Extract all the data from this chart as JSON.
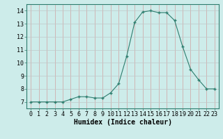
{
  "x": [
    0,
    1,
    2,
    3,
    4,
    5,
    6,
    7,
    8,
    9,
    10,
    11,
    12,
    13,
    14,
    15,
    16,
    17,
    18,
    19,
    20,
    21,
    22,
    23
  ],
  "y": [
    7,
    7,
    7,
    7,
    7,
    7.2,
    7.4,
    7.4,
    7.3,
    7.3,
    7.7,
    8.4,
    10.5,
    13.1,
    13.9,
    14.0,
    13.85,
    13.85,
    13.25,
    11.25,
    9.5,
    8.7,
    8.0,
    8.0
  ],
  "line_color": "#2e7d6e",
  "marker": "+",
  "marker_size": 3,
  "marker_lw": 1.0,
  "background_color": "#cdecea",
  "grid_color": "#b0d8d5",
  "xlabel": "Humidex (Indice chaleur)",
  "xlabel_fontsize": 7,
  "tick_fontsize": 6,
  "ylabel_ticks": [
    7,
    8,
    9,
    10,
    11,
    12,
    13,
    14
  ],
  "xlim": [
    -0.5,
    23.5
  ],
  "ylim": [
    6.5,
    14.5
  ]
}
